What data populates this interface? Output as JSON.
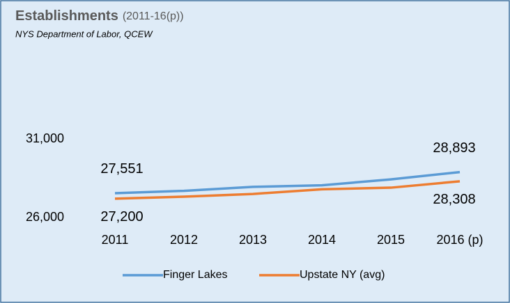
{
  "chart_data": {
    "type": "line",
    "title": "Establishments",
    "title_note": "(2011-16(p))",
    "subtitle": "NYS Department of Labor, QCEW",
    "categories": [
      "2011",
      "2012",
      "2013",
      "2014",
      "2015",
      "2016 (p)"
    ],
    "series": [
      {
        "name": "Finger Lakes",
        "color": "#5b9bd5",
        "values": [
          27551,
          27700,
          27950,
          28050,
          28430,
          28893
        ],
        "value_labels": [
          "27,551",
          null,
          null,
          null,
          null,
          "28,893"
        ]
      },
      {
        "name": "Upstate NY (avg)",
        "color": "#ed7d31",
        "values": [
          27200,
          27330,
          27500,
          27800,
          27900,
          28308
        ],
        "value_labels": [
          "27,200",
          null,
          null,
          null,
          null,
          "28,308"
        ]
      }
    ],
    "ylim": [
      26000,
      31000
    ],
    "yticks": [
      {
        "value": 26000,
        "label": "26,000"
      },
      {
        "value": 31000,
        "label": "31,000"
      }
    ],
    "legend": "bottom"
  }
}
